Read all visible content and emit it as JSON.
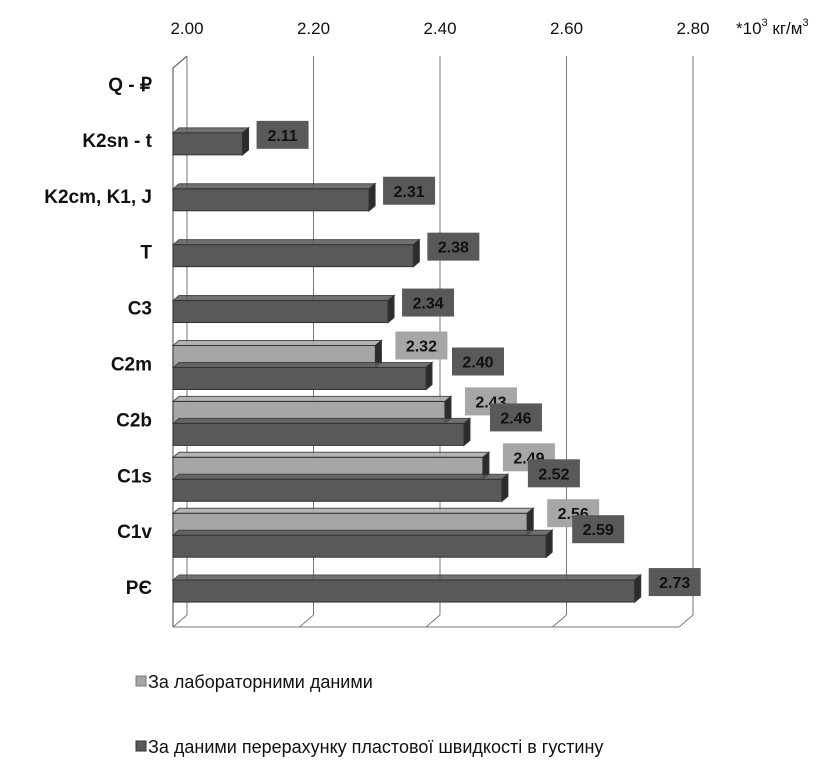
{
  "chart_data": {
    "type": "bar",
    "orientation": "horizontal",
    "xlim": [
      2.0,
      2.8
    ],
    "x_ticks": [
      "2.00",
      "2.20",
      "2.40",
      "2.60",
      "2.80"
    ],
    "unit_label": {
      "prefix": "*10",
      "exp": "3",
      "unit": " кг/м",
      "unit_exp": "3"
    },
    "categories": [
      "Q - ₽",
      "K2sn - t",
      "K2cm, K1, J",
      "T",
      "C3",
      "C2m",
      "C2b",
      "C1s",
      "C1v",
      "PЄ"
    ],
    "series": [
      {
        "name": "За лабораторними даними",
        "color": "#a6a6a6",
        "values": [
          null,
          null,
          null,
          null,
          null,
          2.32,
          2.43,
          2.49,
          2.56,
          null
        ],
        "labels": [
          "",
          "",
          "",
          "",
          "",
          "2.32",
          "2.43",
          "2.49",
          "2.56",
          ""
        ]
      },
      {
        "name": "За даними перерахунку пластової швидкості в густину",
        "color": "#595959",
        "values": [
          null,
          2.11,
          2.31,
          2.38,
          2.34,
          2.4,
          2.46,
          2.52,
          2.59,
          2.73
        ],
        "labels": [
          "",
          "2.11",
          "2.31",
          "2.38",
          "2.34",
          "2.40",
          "2.46",
          "2.52",
          "2.59",
          "2.73"
        ]
      }
    ],
    "grid": true,
    "legend_position": "bottom"
  }
}
